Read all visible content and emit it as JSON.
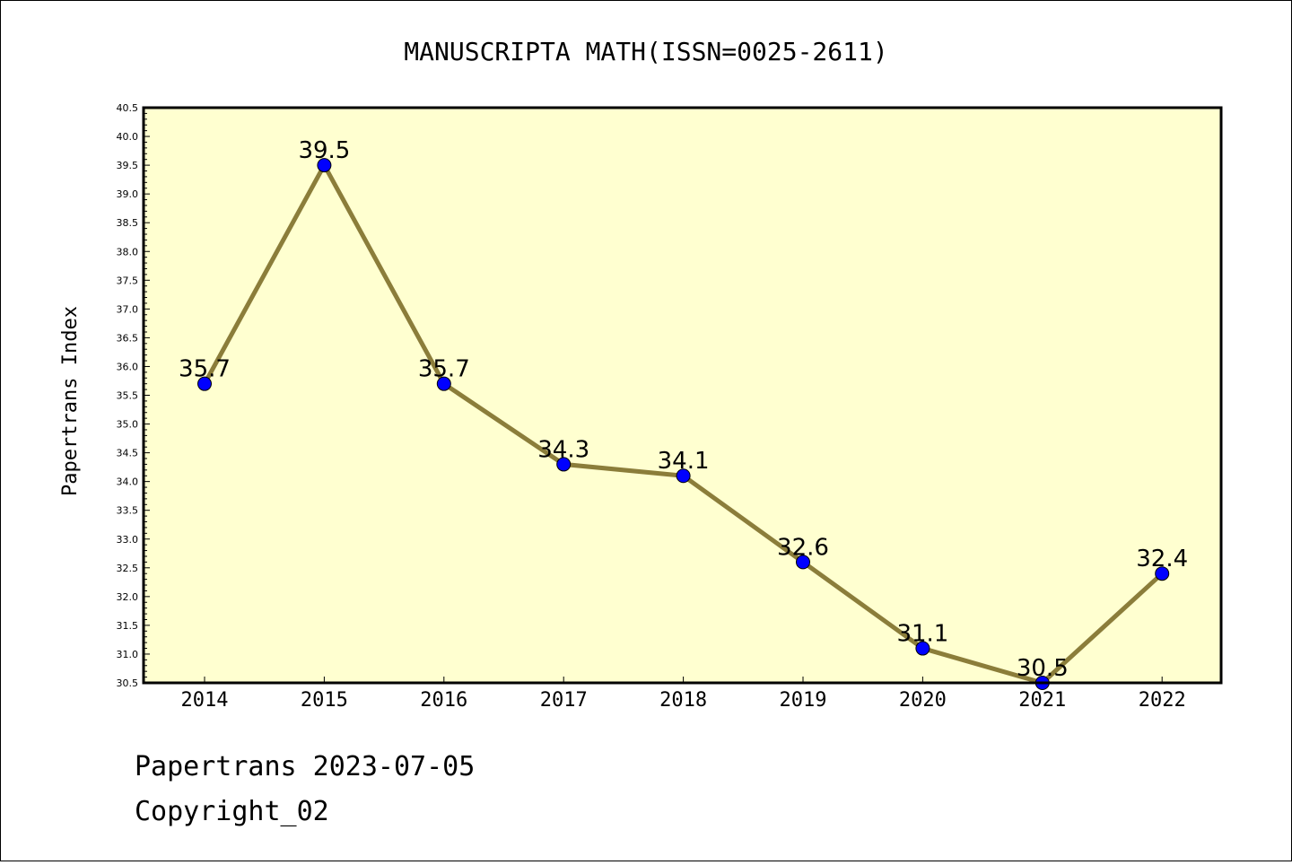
{
  "chart_data": {
    "type": "line",
    "title": "MANUSCRIPTA MATH(ISSN=0025-2611)",
    "ylabel": "Papertrans Index",
    "xlabel": "",
    "categories": [
      "2014",
      "2015",
      "2016",
      "2017",
      "2018",
      "2019",
      "2020",
      "2021",
      "2022"
    ],
    "values": [
      35.7,
      39.5,
      35.7,
      34.3,
      34.1,
      32.6,
      31.1,
      30.5,
      32.4
    ],
    "value_labels": [
      "35.7",
      "39.5",
      "35.7",
      "34.3",
      "34.1",
      "32.6",
      "31.1",
      "30.5",
      "32.4"
    ],
    "ylim": [
      30.5,
      40.5
    ],
    "ytick_step": 0.5,
    "grid": false,
    "colors": {
      "plot_background": "#ffffd0",
      "line": "#8b7d3a",
      "marker": "#0000ff"
    }
  },
  "footer": {
    "line1": "Papertrans 2023-07-05",
    "line2": "Copyright_02"
  }
}
